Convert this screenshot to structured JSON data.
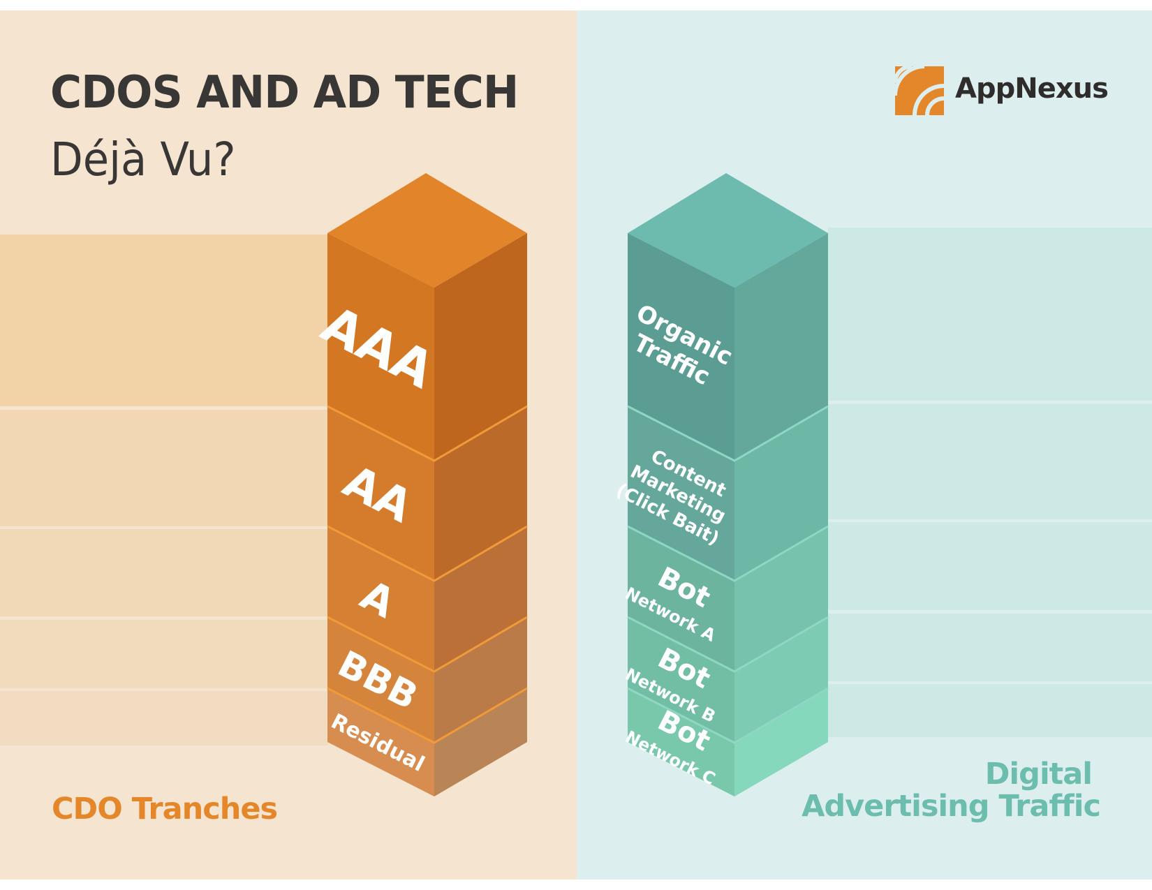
{
  "header": {
    "title": "CDOS AND AD TECH",
    "subtitle": "Déjà Vu?"
  },
  "logo": {
    "name": "AppNexus",
    "icon": "appnexus-logo-icon",
    "color": "#e4862a"
  },
  "left_panel": {
    "caption": "CDO Tranches",
    "background": "#f5e5d0",
    "tiers": [
      {
        "lines": [
          "AAA"
        ],
        "top": "#e2852a",
        "left": "#d47722",
        "right": "#be661e"
      },
      {
        "lines": [
          "AA"
        ],
        "top": "#e79034",
        "left": "#d57b2c",
        "right": "#bc6a29"
      },
      {
        "lines": [
          "A"
        ],
        "top": "#e99a45",
        "left": "#d58033",
        "right": "#bb7038"
      },
      {
        "lines": [
          "BBB"
        ],
        "top": "#eaa054",
        "left": "#d5843b",
        "right": "#bb7b48"
      },
      {
        "lines": [
          "Residual"
        ],
        "top": "#eaa660",
        "left": "#d78d4f",
        "right": "#b98456"
      }
    ]
  },
  "right_panel": {
    "caption_lines": [
      "Digital",
      "Advertising Traffic"
    ],
    "background": "#dcefee",
    "tiers": [
      {
        "lines": [
          "Organic",
          "Traffic"
        ],
        "top": "#6dbaaf",
        "left": "#5c9d93",
        "right": "#64a89c"
      },
      {
        "lines": [
          "Content",
          "Marketing",
          "(Click Bait)"
        ],
        "top": "#73c3b2",
        "left": "#65a79a",
        "right": "#6cb7a5"
      },
      {
        "lines": [
          "Bot",
          "Network A"
        ],
        "top": "#79cbb6",
        "left": "#6db49f",
        "right": "#76c2ad"
      },
      {
        "lines": [
          "Bot",
          "Network B"
        ],
        "top": "#7fd3ba",
        "left": "#72bea5",
        "right": "#7ccbb2"
      },
      {
        "lines": [
          "Bot",
          "Network C"
        ],
        "top": "#86dcbe",
        "left": "#7ac8ab",
        "right": "#85d8bb"
      }
    ]
  }
}
